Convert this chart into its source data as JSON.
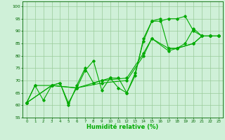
{
  "title": "",
  "xlabel": "Humidité relative (%)",
  "ylabel": "",
  "xlim": [
    -0.5,
    23.5
  ],
  "ylim": [
    55,
    102
  ],
  "yticks": [
    55,
    60,
    65,
    70,
    75,
    80,
    85,
    90,
    95,
    100
  ],
  "xticks": [
    0,
    1,
    2,
    3,
    4,
    5,
    6,
    7,
    8,
    9,
    10,
    11,
    12,
    13,
    14,
    15,
    16,
    17,
    18,
    19,
    20,
    21,
    22,
    23
  ],
  "background_color": "#cff0d8",
  "grid_color": "#99cc99",
  "line_color": "#00aa00",
  "series": [
    {
      "x": [
        0,
        1,
        3,
        4,
        5,
        6,
        7,
        8,
        9,
        10,
        11,
        12,
        13,
        14,
        15,
        16,
        17,
        18,
        19,
        20,
        21,
        22,
        23
      ],
      "y": [
        61,
        68,
        68,
        69,
        61,
        67,
        74,
        78,
        66,
        71,
        67,
        65,
        72,
        87,
        94,
        94,
        95,
        95,
        96,
        90,
        88,
        88,
        88
      ]
    },
    {
      "x": [
        0,
        1,
        2,
        3,
        4,
        5,
        6,
        7,
        8,
        9,
        10,
        11,
        12,
        13,
        14,
        15,
        16,
        17,
        18,
        19,
        20,
        21,
        22,
        23
      ],
      "y": [
        61,
        68,
        62,
        68,
        69,
        60,
        68,
        75,
        69,
        70,
        71,
        71,
        65,
        73,
        86,
        94,
        95,
        83,
        83,
        85,
        91,
        88,
        88,
        88
      ]
    },
    {
      "x": [
        0,
        3,
        6,
        9,
        12,
        14,
        15,
        17,
        18,
        20,
        21,
        22,
        23
      ],
      "y": [
        61,
        68,
        67,
        69,
        70,
        80,
        87,
        82,
        83,
        85,
        88,
        88,
        88
      ]
    },
    {
      "x": [
        0,
        3,
        6,
        9,
        12,
        14,
        15,
        17,
        18,
        20,
        21,
        22,
        23
      ],
      "y": [
        61,
        68,
        67,
        70,
        71,
        81,
        87,
        83,
        83,
        85,
        88,
        88,
        88
      ]
    }
  ]
}
